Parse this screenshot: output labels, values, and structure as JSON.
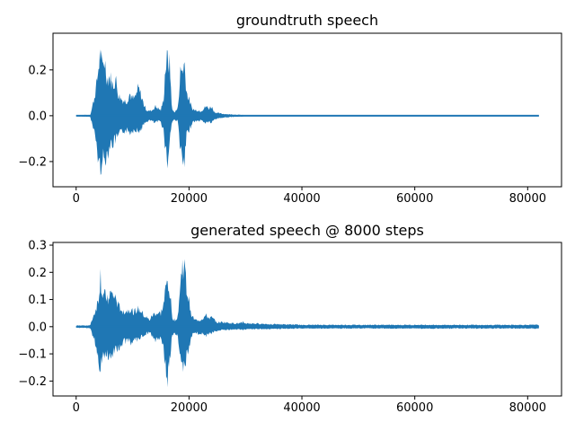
{
  "chart_data": [
    {
      "type": "line",
      "title": "groundtruth speech",
      "xlabel": "",
      "ylabel": "",
      "xlim": [
        -4100,
        86000
      ],
      "ylim": [
        -0.31,
        0.36
      ],
      "xticks": [
        0,
        20000,
        40000,
        60000,
        80000
      ],
      "xtick_labels": [
        "0",
        "20000",
        "40000",
        "60000",
        "80000"
      ],
      "yticks": [
        -0.2,
        0.0,
        0.2
      ],
      "ytick_labels": [
        "−0.2",
        "0.0",
        "0.2"
      ],
      "grid": false,
      "color": "#1f77b4",
      "series": [
        {
          "envelope_x": [
            0,
            2500,
            2800,
            3500,
            4000,
            4300,
            4600,
            5000,
            5500,
            6000,
            6500,
            7000,
            7500,
            8000,
            8500,
            9000,
            9500,
            10000,
            10500,
            11000,
            11500,
            12000,
            12500,
            13000,
            13500,
            14000,
            14500,
            15000,
            15500,
            15800,
            16200,
            16600,
            17000,
            17500,
            18000,
            18500,
            18800,
            19200,
            19600,
            20000,
            20500,
            21000,
            21500,
            22000,
            22500,
            23000,
            23500,
            24000,
            24500,
            25000,
            26000,
            28000,
            29500,
            30000,
            40000,
            60000,
            82000
          ],
          "upper": [
            0.003,
            0.005,
            0.04,
            0.14,
            0.27,
            0.35,
            0.25,
            0.31,
            0.2,
            0.21,
            0.16,
            0.2,
            0.11,
            0.09,
            0.08,
            0.08,
            0.12,
            0.09,
            0.1,
            0.15,
            0.11,
            0.06,
            0.03,
            0.025,
            0.03,
            0.05,
            0.04,
            0.03,
            0.09,
            0.26,
            0.31,
            0.27,
            0.03,
            0.02,
            0.04,
            0.24,
            0.25,
            0.28,
            0.12,
            0.09,
            0.04,
            0.03,
            0.03,
            0.025,
            0.035,
            0.05,
            0.04,
            0.05,
            0.02,
            0.015,
            0.01,
            0.006,
            0.004,
            0.002,
            0.002,
            0.002,
            0.002
          ],
          "lower": [
            -0.003,
            -0.005,
            -0.04,
            -0.13,
            -0.26,
            -0.29,
            -0.22,
            -0.25,
            -0.2,
            -0.16,
            -0.15,
            -0.13,
            -0.11,
            -0.09,
            -0.08,
            -0.08,
            -0.09,
            -0.08,
            -0.07,
            -0.09,
            -0.07,
            -0.05,
            -0.03,
            -0.025,
            -0.03,
            -0.04,
            -0.03,
            -0.03,
            -0.08,
            -0.17,
            -0.26,
            -0.12,
            -0.03,
            -0.02,
            -0.03,
            -0.18,
            -0.27,
            -0.26,
            -0.1,
            -0.08,
            -0.04,
            -0.03,
            -0.03,
            -0.025,
            -0.03,
            -0.04,
            -0.03,
            -0.04,
            -0.02,
            -0.015,
            -0.01,
            -0.006,
            -0.004,
            -0.002,
            -0.002,
            -0.002,
            -0.002
          ]
        }
      ]
    },
    {
      "type": "line",
      "title": "generated speech @ 8000 steps",
      "xlabel": "",
      "ylabel": "",
      "xlim": [
        -4100,
        86000
      ],
      "ylim": [
        -0.255,
        0.31
      ],
      "xticks": [
        0,
        20000,
        40000,
        60000,
        80000
      ],
      "xtick_labels": [
        "0",
        "20000",
        "40000",
        "60000",
        "80000"
      ],
      "yticks": [
        -0.2,
        -0.1,
        0.0,
        0.1,
        0.2,
        0.3
      ],
      "ytick_labels": [
        "−0.2",
        "−0.1",
        "0.0",
        "0.1",
        "0.2",
        "0.3"
      ],
      "grid": false,
      "color": "#1f77b4",
      "series": [
        {
          "envelope_x": [
            0,
            2500,
            2800,
            3500,
            4000,
            4300,
            4600,
            5000,
            5500,
            6000,
            6500,
            7000,
            7500,
            8000,
            8500,
            9000,
            9500,
            10000,
            10500,
            11000,
            11500,
            12000,
            12500,
            13000,
            13500,
            14000,
            14500,
            15000,
            15500,
            15800,
            16200,
            16600,
            17000,
            17500,
            18000,
            18500,
            18800,
            19200,
            19600,
            20000,
            20500,
            21000,
            21500,
            22000,
            22500,
            23000,
            23500,
            24000,
            24500,
            25000,
            26000,
            28000,
            29000,
            29500,
            30000,
            40000,
            60000,
            82000
          ],
          "upper": [
            0.005,
            0.006,
            0.03,
            0.08,
            0.13,
            0.24,
            0.15,
            0.14,
            0.13,
            0.15,
            0.14,
            0.13,
            0.09,
            0.08,
            0.07,
            0.07,
            0.08,
            0.07,
            0.07,
            0.08,
            0.07,
            0.05,
            0.04,
            0.03,
            0.05,
            0.06,
            0.06,
            0.06,
            0.1,
            0.16,
            0.21,
            0.17,
            0.04,
            0.03,
            0.05,
            0.19,
            0.28,
            0.27,
            0.16,
            0.12,
            0.05,
            0.03,
            0.03,
            0.03,
            0.04,
            0.05,
            0.04,
            0.04,
            0.03,
            0.02,
            0.02,
            0.015,
            0.015,
            0.02,
            0.015,
            0.008,
            0.008,
            0.008
          ],
          "lower": [
            -0.005,
            -0.006,
            -0.03,
            -0.08,
            -0.14,
            -0.22,
            -0.13,
            -0.12,
            -0.13,
            -0.13,
            -0.12,
            -0.11,
            -0.09,
            -0.08,
            -0.07,
            -0.07,
            -0.07,
            -0.07,
            -0.06,
            -0.06,
            -0.05,
            -0.04,
            -0.03,
            -0.03,
            -0.04,
            -0.06,
            -0.05,
            -0.05,
            -0.09,
            -0.18,
            -0.23,
            -0.15,
            -0.04,
            -0.03,
            -0.04,
            -0.15,
            -0.18,
            -0.21,
            -0.12,
            -0.09,
            -0.04,
            -0.03,
            -0.03,
            -0.03,
            -0.03,
            -0.04,
            -0.03,
            -0.03,
            -0.02,
            -0.02,
            -0.015,
            -0.012,
            -0.012,
            -0.015,
            -0.012,
            -0.008,
            -0.008,
            -0.008
          ]
        }
      ]
    }
  ]
}
